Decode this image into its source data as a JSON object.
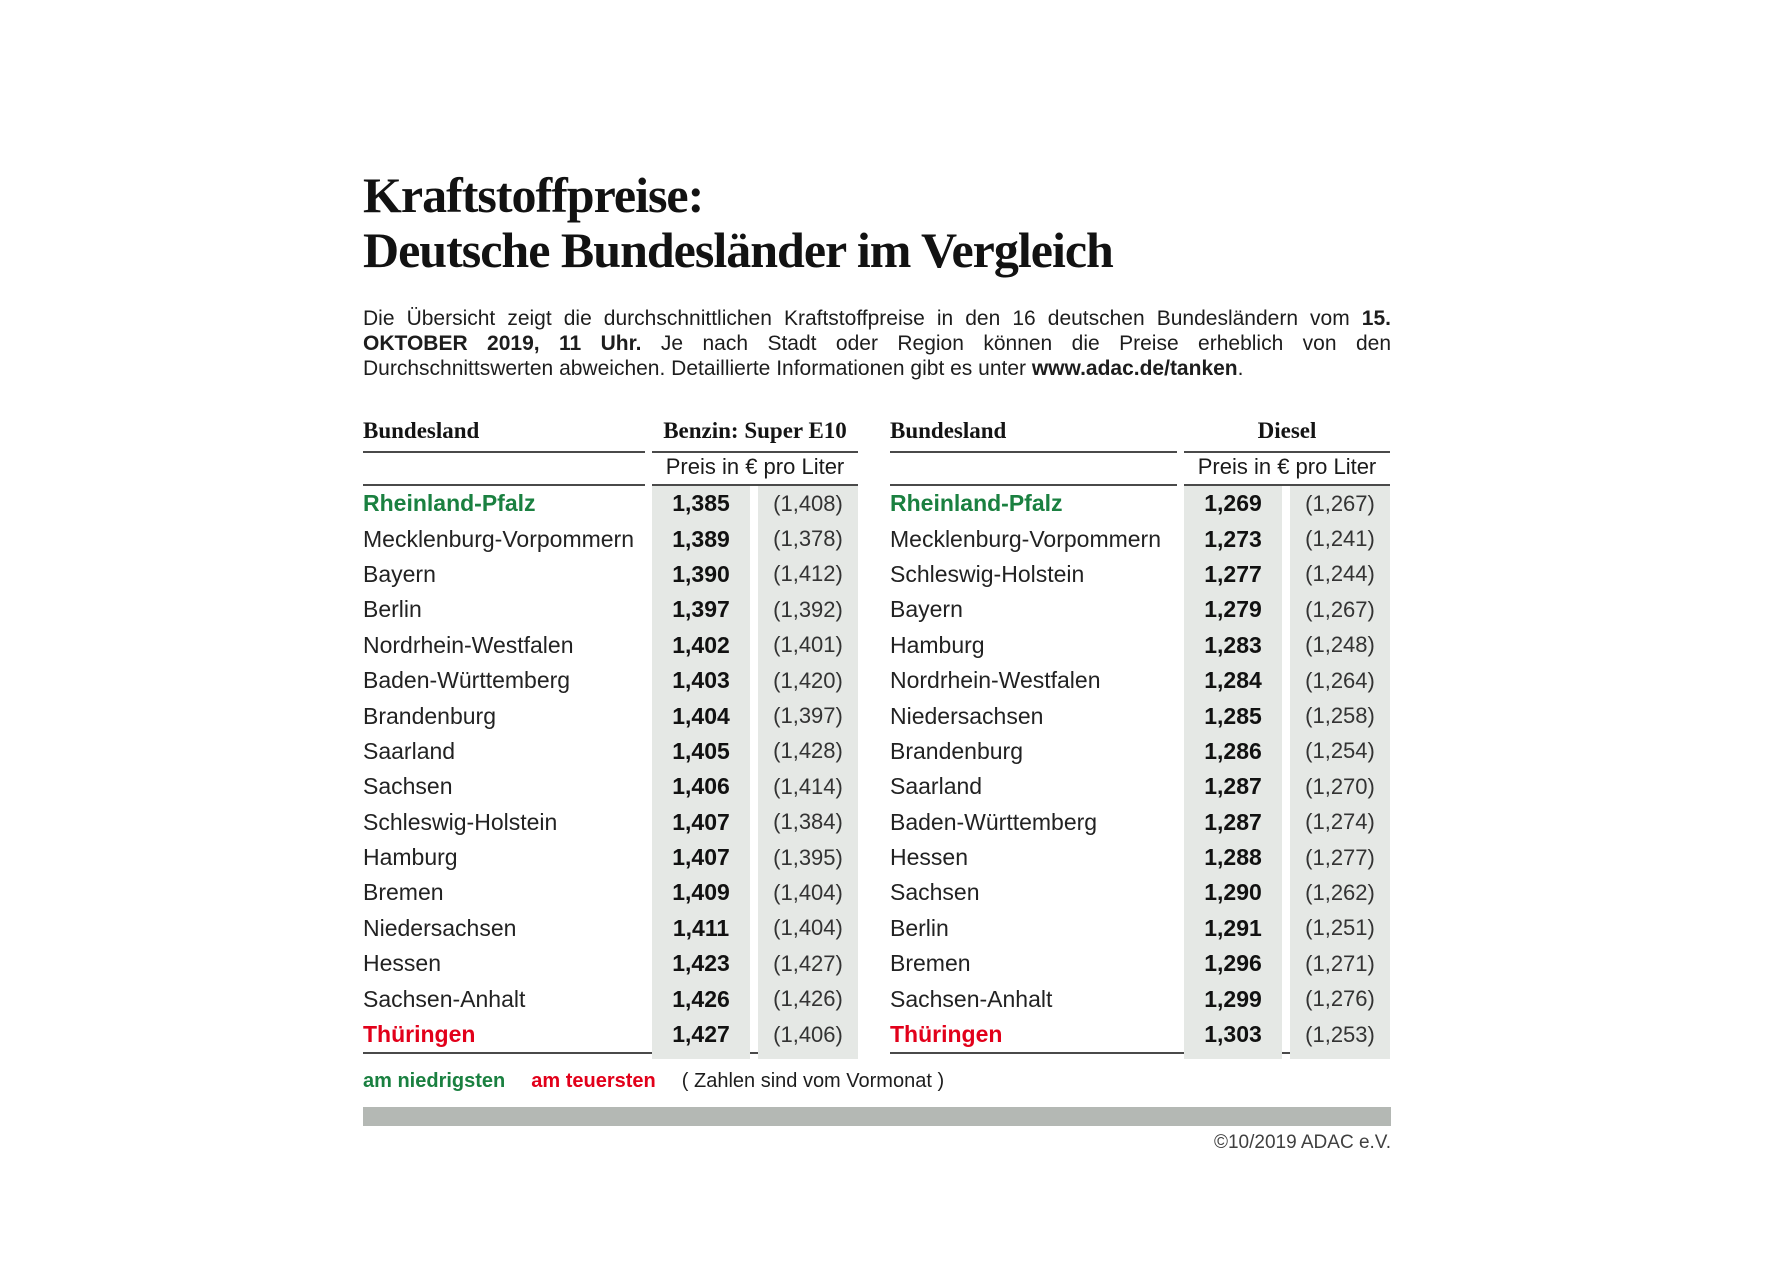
{
  "title": {
    "line1": "Kraftstoffpreise:",
    "line2": "Deutsche Bundesländer im Vergleich"
  },
  "intro": {
    "text_start": "Die Übersicht zeigt die durchschnittlichen Kraftstoffpreise in den 16 deutschen Bundesländern vom ",
    "date_bold": "15. OKTOBER 2019, 11 Uhr.",
    "text_middle": " Je nach Stadt oder Region können die Preise erheblich von den Durchschnittswerten abweichen. Detaillierte Informationen gibt es unter ",
    "url_bold": "www.adac.de/tanken",
    "text_end": "."
  },
  "legend": {
    "lowest_label": "am niedrigsten",
    "highest_label": "am teuersten",
    "note": "( Zahlen sind vom Vormonat )"
  },
  "footer": {
    "copyright": "©10/2019 ADAC e.V."
  },
  "colors": {
    "lowest_green": "#1a8040",
    "highest_red": "#e2001a",
    "stripe_gray": "#e5e8e5",
    "bar_gray": "#b4b8b4"
  },
  "chart_data": [
    {
      "type": "table",
      "state_header": "Bundesland",
      "fuel_header": "Benzin: Super E10",
      "price_header": "Preis in € pro Liter",
      "columns": [
        "Bundesland",
        "Preis in € pro Liter (aktuell)",
        "Preis in € pro Liter (Vormonat)"
      ],
      "rows": [
        {
          "name": "Rheinland-Pfalz",
          "price": "1,385",
          "prev": "(1,408)",
          "highlight": "lowest"
        },
        {
          "name": "Mecklenburg-Vorpommern",
          "price": "1,389",
          "prev": "(1,378)"
        },
        {
          "name": "Bayern",
          "price": "1,390",
          "prev": "(1,412)"
        },
        {
          "name": "Berlin",
          "price": "1,397",
          "prev": "(1,392)"
        },
        {
          "name": "Nordrhein-Westfalen",
          "price": "1,402",
          "prev": "(1,401)"
        },
        {
          "name": "Baden-Württemberg",
          "price": "1,403",
          "prev": "(1,420)"
        },
        {
          "name": "Brandenburg",
          "price": "1,404",
          "prev": "(1,397)"
        },
        {
          "name": "Saarland",
          "price": "1,405",
          "prev": "(1,428)"
        },
        {
          "name": "Sachsen",
          "price": "1,406",
          "prev": "(1,414)"
        },
        {
          "name": "Schleswig-Holstein",
          "price": "1,407",
          "prev": "(1,384)"
        },
        {
          "name": "Hamburg",
          "price": "1,407",
          "prev": "(1,395)"
        },
        {
          "name": "Bremen",
          "price": "1,409",
          "prev": "(1,404)"
        },
        {
          "name": "Niedersachsen",
          "price": "1,411",
          "prev": "(1,404)"
        },
        {
          "name": "Hessen",
          "price": "1,423",
          "prev": "(1,427)"
        },
        {
          "name": "Sachsen-Anhalt",
          "price": "1,426",
          "prev": "(1,426)"
        },
        {
          "name": "Thüringen",
          "price": "1,427",
          "prev": "(1,406)",
          "highlight": "highest"
        }
      ]
    },
    {
      "type": "table",
      "state_header": "Bundesland",
      "fuel_header": "Diesel",
      "price_header": "Preis in € pro Liter",
      "columns": [
        "Bundesland",
        "Preis in € pro Liter (aktuell)",
        "Preis in € pro Liter (Vormonat)"
      ],
      "rows": [
        {
          "name": "Rheinland-Pfalz",
          "price": "1,269",
          "prev": "(1,267)",
          "highlight": "lowest"
        },
        {
          "name": "Mecklenburg-Vorpommern",
          "price": "1,273",
          "prev": "(1,241)"
        },
        {
          "name": "Schleswig-Holstein",
          "price": "1,277",
          "prev": "(1,244)"
        },
        {
          "name": "Bayern",
          "price": "1,279",
          "prev": "(1,267)"
        },
        {
          "name": "Hamburg",
          "price": "1,283",
          "prev": "(1,248)"
        },
        {
          "name": "Nordrhein-Westfalen",
          "price": "1,284",
          "prev": "(1,264)"
        },
        {
          "name": "Niedersachsen",
          "price": "1,285",
          "prev": "(1,258)"
        },
        {
          "name": "Brandenburg",
          "price": "1,286",
          "prev": "(1,254)"
        },
        {
          "name": "Saarland",
          "price": "1,287",
          "prev": "(1,270)"
        },
        {
          "name": "Baden-Württemberg",
          "price": "1,287",
          "prev": "(1,274)"
        },
        {
          "name": "Hessen",
          "price": "1,288",
          "prev": "(1,277)"
        },
        {
          "name": "Sachsen",
          "price": "1,290",
          "prev": "(1,262)"
        },
        {
          "name": "Berlin",
          "price": "1,291",
          "prev": "(1,251)"
        },
        {
          "name": "Bremen",
          "price": "1,296",
          "prev": "(1,271)"
        },
        {
          "name": "Sachsen-Anhalt",
          "price": "1,299",
          "prev": "(1,276)"
        },
        {
          "name": "Thüringen",
          "price": "1,303",
          "prev": "(1,253)",
          "highlight": "highest"
        }
      ]
    }
  ]
}
